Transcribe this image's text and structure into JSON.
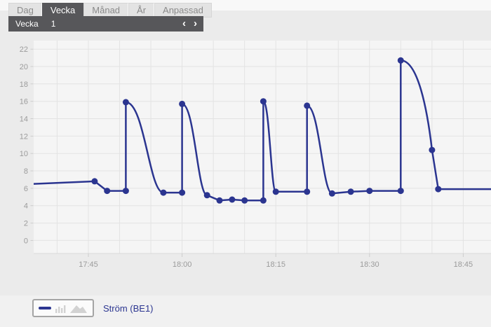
{
  "tabs": {
    "items": [
      {
        "label": "Dag",
        "selected": false
      },
      {
        "label": "Vecka",
        "selected": true
      },
      {
        "label": "Månad",
        "selected": false
      },
      {
        "label": "År",
        "selected": false
      },
      {
        "label": "Anpassad",
        "selected": false
      }
    ]
  },
  "period_bar": {
    "label": "Vecka",
    "value": "1",
    "prev_icon": "‹",
    "next_icon": "›"
  },
  "legend": {
    "label": "Ström (BE1)",
    "icons": [
      "line-chart-icon",
      "bar-chart-icon",
      "area-chart-icon"
    ]
  },
  "colors": {
    "line": "#2b3590",
    "tab_selected_bg": "#57575a",
    "axis_label": "#9b9b9b",
    "grid": "#e3e3e3",
    "plot_bg": "#f5f5f5",
    "plot_edge": "#d9d9d9",
    "tick": "#cccccc",
    "page_bg": "#ebebeb",
    "legend_border": "#a5a5a5",
    "legend_muted_icon": "#d2d2d2"
  },
  "chart_data": {
    "type": "line",
    "title": "",
    "xlabel": "",
    "ylabel": "",
    "grid": true,
    "legend_position": "bottom-left",
    "x_range": [
      "17:36",
      "18:50"
    ],
    "ylim": [
      -1.5,
      23
    ],
    "y_ticks": [
      0,
      2,
      4,
      6,
      8,
      10,
      12,
      14,
      16,
      18,
      20,
      22
    ],
    "x_tick_labels": [
      "17:45",
      "18:00",
      "18:15",
      "18:30",
      "18:45"
    ],
    "x_gridline_every_min": 5,
    "series": [
      {
        "name": "Ström (BE1)",
        "points": [
          {
            "t": "17:36",
            "v": 6.5,
            "marker": false,
            "conn": "start"
          },
          {
            "t": "17:46",
            "v": 6.8,
            "marker": true,
            "conn": "line"
          },
          {
            "t": "17:48",
            "v": 5.7,
            "marker": true,
            "conn": "line"
          },
          {
            "t": "17:51",
            "v": 5.7,
            "marker": true,
            "conn": "line"
          },
          {
            "t": "17:51",
            "v": 15.9,
            "marker": true,
            "conn": "jump"
          },
          {
            "t": "17:57",
            "v": 5.5,
            "marker": true,
            "conn": "decay"
          },
          {
            "t": "18:00",
            "v": 5.5,
            "marker": true,
            "conn": "line"
          },
          {
            "t": "18:00",
            "v": 15.7,
            "marker": true,
            "conn": "jump"
          },
          {
            "t": "18:04",
            "v": 5.2,
            "marker": true,
            "conn": "decay"
          },
          {
            "t": "18:06",
            "v": 4.6,
            "marker": true,
            "conn": "line"
          },
          {
            "t": "18:08",
            "v": 4.7,
            "marker": true,
            "conn": "line"
          },
          {
            "t": "18:10",
            "v": 4.6,
            "marker": true,
            "conn": "line"
          },
          {
            "t": "18:13",
            "v": 4.6,
            "marker": true,
            "conn": "line"
          },
          {
            "t": "18:13",
            "v": 16.0,
            "marker": true,
            "conn": "jump"
          },
          {
            "t": "18:15",
            "v": 5.6,
            "marker": true,
            "conn": "decay"
          },
          {
            "t": "18:20",
            "v": 5.6,
            "marker": true,
            "conn": "line"
          },
          {
            "t": "18:20",
            "v": 15.5,
            "marker": true,
            "conn": "jump"
          },
          {
            "t": "18:24",
            "v": 5.4,
            "marker": true,
            "conn": "decay"
          },
          {
            "t": "18:27",
            "v": 5.6,
            "marker": true,
            "conn": "line"
          },
          {
            "t": "18:30",
            "v": 5.7,
            "marker": true,
            "conn": "line"
          },
          {
            "t": "18:35",
            "v": 5.7,
            "marker": true,
            "conn": "line"
          },
          {
            "t": "18:35",
            "v": 20.7,
            "marker": true,
            "conn": "jump"
          },
          {
            "t": "18:40",
            "v": 10.4,
            "marker": true,
            "conn": "decay2"
          },
          {
            "t": "18:41",
            "v": 5.9,
            "marker": true,
            "conn": "line"
          },
          {
            "t": "18:50",
            "v": 5.9,
            "marker": false,
            "conn": "line"
          }
        ]
      }
    ]
  }
}
